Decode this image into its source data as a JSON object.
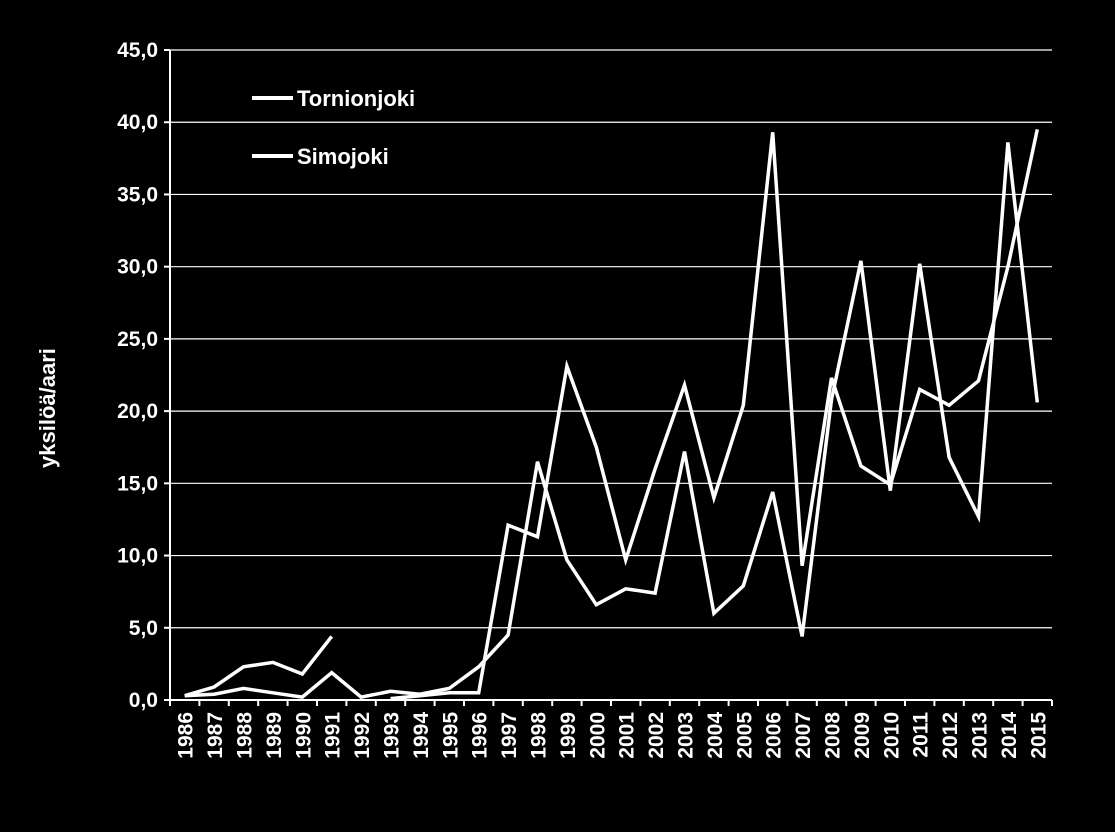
{
  "chart_data": {
    "type": "line",
    "title": "",
    "xlabel": "",
    "ylabel": "yksilöä/aari",
    "ylim": [
      0,
      45
    ],
    "yticks": [
      0,
      5,
      10,
      15,
      20,
      25,
      30,
      35,
      40,
      45
    ],
    "ytick_labels": [
      "0,0",
      "5,0",
      "10,0",
      "15,0",
      "20,0",
      "25,0",
      "30,0",
      "35,0",
      "40,0",
      "45,0"
    ],
    "grid": true,
    "legend_position": "top-left",
    "categories": [
      "1986",
      "1987",
      "1988",
      "1989",
      "1990",
      "1991",
      "1992",
      "1993",
      "1994",
      "1995",
      "1996",
      "1997",
      "1998",
      "1999",
      "2000",
      "2001",
      "2002",
      "2003",
      "2004",
      "2005",
      "2006",
      "2007",
      "2008",
      "2009",
      "2010",
      "2011",
      "2012",
      "2013",
      "2014",
      "2015"
    ],
    "series": [
      {
        "name": "Tornionjoki",
        "color": "#ffffff",
        "values": [
          0.3,
          0.9,
          2.3,
          2.6,
          1.8,
          4.4,
          null,
          0.1,
          0.3,
          0.5,
          0.5,
          12.1,
          11.3,
          23.1,
          17.5,
          9.7,
          16.0,
          21.8,
          14.0,
          20.4,
          39.3,
          9.3,
          22.3,
          16.2,
          14.9,
          21.5,
          20.4,
          22.1,
          30.0,
          39.5
        ]
      },
      {
        "name": "Simojoki",
        "color": "#ffffff",
        "values": [
          0.3,
          0.4,
          0.8,
          0.5,
          0.2,
          1.9,
          0.2,
          0.6,
          0.4,
          0.8,
          2.3,
          4.5,
          16.5,
          9.7,
          6.6,
          7.7,
          7.4,
          17.2,
          6.0,
          7.9,
          14.4,
          4.4,
          20.8,
          30.4,
          14.5,
          30.2,
          16.8,
          12.7,
          38.6,
          20.6
        ]
      }
    ]
  }
}
